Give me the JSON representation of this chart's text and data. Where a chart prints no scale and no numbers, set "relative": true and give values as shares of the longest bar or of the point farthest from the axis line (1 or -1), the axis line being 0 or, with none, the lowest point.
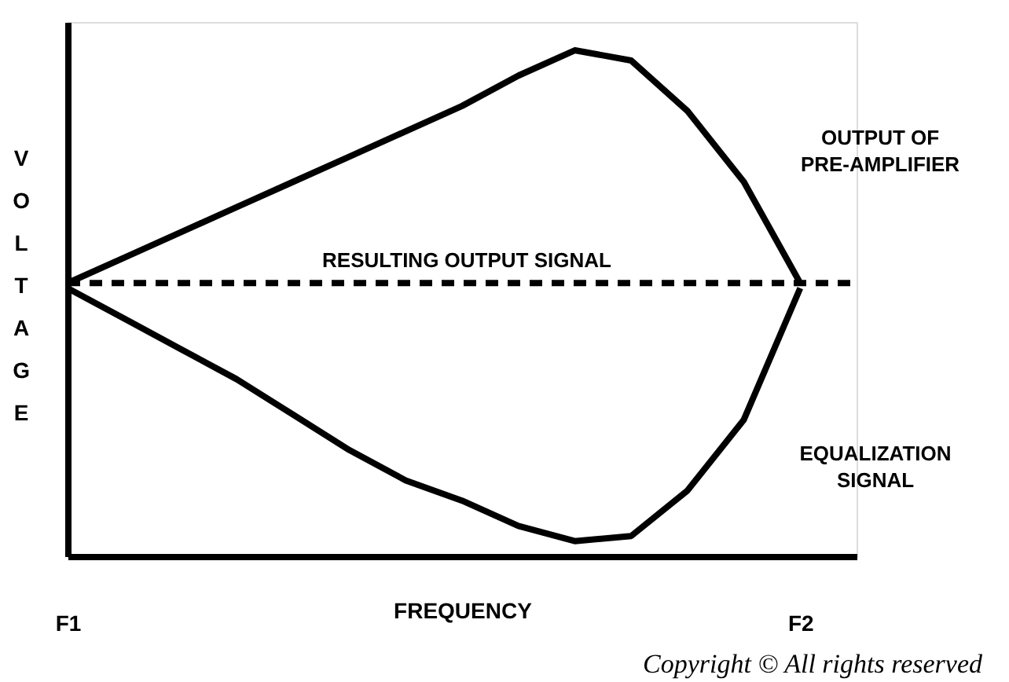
{
  "chart_data": {
    "type": "line",
    "relative": true,
    "xlabel": "FREQUENCY",
    "ylabel": "VOLTAGE",
    "categories": [
      "F1",
      null,
      null,
      null,
      null,
      null,
      null,
      null,
      null,
      null,
      null,
      null,
      null,
      "F2",
      null
    ],
    "marker": "none",
    "line_style": "solid",
    "series": [
      {
        "color": "#000000",
        "values": [
          0.54,
          0.59,
          0.64,
          0.69,
          0.74,
          0.79,
          0.84,
          0.89,
          0.95,
          1.0,
          0.98,
          0.88,
          0.74,
          0.54,
          null
        ]
      },
      {
        "color": "#000000",
        "values": [
          0.53,
          0.47,
          0.41,
          0.35,
          0.28,
          0.21,
          0.15,
          0.11,
          0.06,
          0.03,
          0.04,
          0.13,
          0.27,
          0.53,
          null
        ]
      },
      {
        "color": "#000000",
        "line_style": "dashed",
        "values": [
          0.54,
          0.54,
          0.54,
          0.54,
          0.54,
          0.54,
          0.54,
          0.54,
          0.54,
          0.54,
          0.54,
          0.54,
          0.54,
          0.54,
          0.54
        ]
      }
    ],
    "annotations": [
      "RESULTING OUTPUT SIGNAL",
      "OUTPUT OF\nPRE-AMPLIFIER",
      "EQUALIZATION\nSIGNAL",
      "Copyright ©  All rights reserved"
    ]
  }
}
